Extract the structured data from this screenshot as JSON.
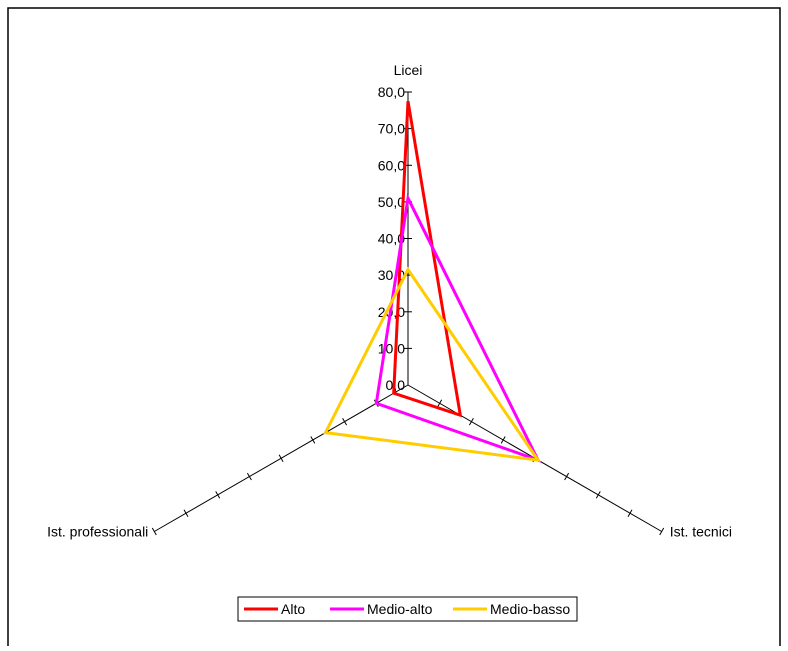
{
  "chart_data": {
    "type": "radar",
    "axes": [
      "Licei",
      "Ist. tecnici",
      "Ist. professionali"
    ],
    "scale": {
      "min": 0,
      "max": 80,
      "step": 10,
      "tick_labels": [
        "0,0",
        "10,0",
        "20,0",
        "30,0",
        "40,0",
        "50,0",
        "60,0",
        "70,0",
        "80,0"
      ]
    },
    "series": [
      {
        "name": "Alto",
        "color": "#ff0000",
        "values": [
          77.5,
          16.5,
          4.5
        ]
      },
      {
        "name": "Medio-alto",
        "color": "#ff00ff",
        "values": [
          51.0,
          41.0,
          10.0
        ]
      },
      {
        "name": "Medio-basso",
        "color": "#ffcc00",
        "values": [
          31.5,
          41.0,
          26.0
        ]
      }
    ],
    "legend": {
      "position": "bottom"
    },
    "grid": false
  }
}
